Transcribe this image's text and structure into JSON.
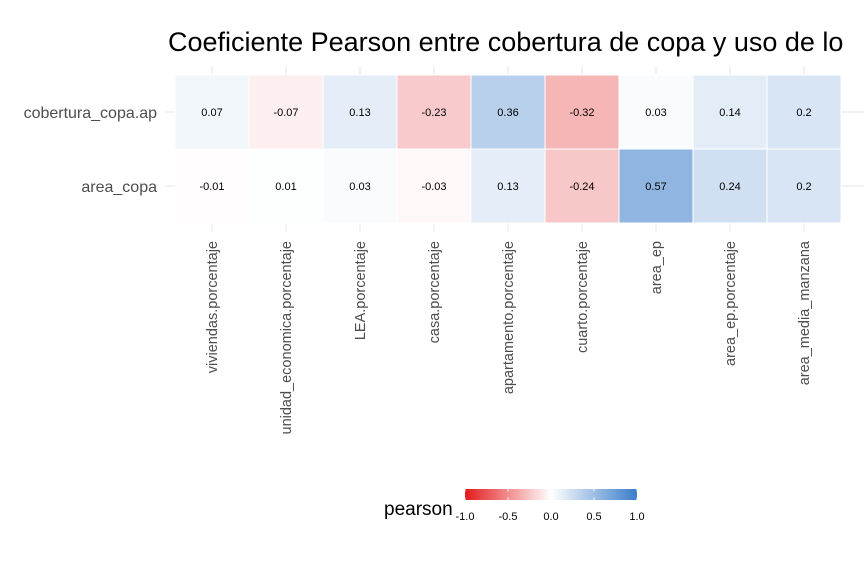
{
  "chart_data": {
    "type": "heatmap",
    "title": "Coeficiente Pearson entre cobertura de copa y uso de lo",
    "rows": [
      "cobertura_copa.ap",
      "area_copa"
    ],
    "columns": [
      "viviendas.porcentaje",
      "unidad_economica.porcentaje",
      "LEA.porcentaje",
      "casa.porcentaje",
      "apartamento.porcentaje",
      "cuarto.porcentaje",
      "area_ep",
      "area_ep.porcentaje",
      "area_media_manzana"
    ],
    "values": [
      [
        0.07,
        -0.07,
        0.13,
        -0.23,
        0.36,
        -0.32,
        0.03,
        0.14,
        0.2
      ],
      [
        -0.01,
        0.01,
        0.03,
        -0.03,
        0.13,
        -0.24,
        0.57,
        0.24,
        0.2
      ]
    ],
    "legend": {
      "title": "pearson",
      "ticks": [
        "-1.0",
        "-0.5",
        "0.0",
        "0.5",
        "1.0"
      ],
      "range": [
        -1,
        1
      ],
      "low_color": "#e31a1c",
      "mid_color": "#ffffff",
      "high_color": "#3a7dc9",
      "placement": "bottom"
    }
  }
}
